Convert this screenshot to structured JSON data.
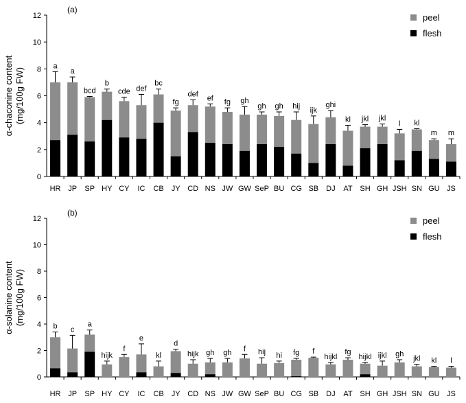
{
  "colors": {
    "peel": "#8c8c8c",
    "flesh": "#000000",
    "axis": "#000000"
  },
  "chart_data": [
    {
      "type": "bar",
      "stacked": true,
      "panel_label": "(a)",
      "ylabel_line1": "α-chaconine content",
      "ylabel_line2": "(mg/100g FW)",
      "ylim": [
        0,
        12
      ],
      "yticks": [
        "0",
        "2",
        "4",
        "6",
        "8",
        "10",
        "12"
      ],
      "categories": [
        "HR",
        "JP",
        "SP",
        "HY",
        "CY",
        "IC",
        "CB",
        "JY",
        "CD",
        "NS",
        "JW",
        "GW",
        "SeP",
        "BU",
        "CG",
        "SB",
        "DJ",
        "AT",
        "SH",
        "GH",
        "JSH",
        "SN",
        "GU",
        "JS"
      ],
      "series": [
        {
          "name": "flesh",
          "values": [
            2.7,
            3.1,
            2.6,
            4.2,
            2.9,
            2.8,
            4.0,
            1.5,
            3.3,
            2.5,
            2.4,
            1.9,
            2.4,
            2.2,
            1.7,
            1.0,
            2.4,
            0.8,
            2.1,
            2.4,
            1.2,
            1.9,
            1.3,
            1.1
          ]
        },
        {
          "name": "peel",
          "values": [
            4.3,
            3.9,
            3.3,
            2.1,
            2.7,
            2.5,
            2.1,
            3.4,
            2.0,
            2.7,
            2.4,
            2.7,
            2.2,
            2.3,
            2.5,
            2.9,
            2.0,
            2.6,
            1.6,
            1.3,
            2.0,
            1.6,
            1.4,
            1.3
          ]
        }
      ],
      "errors": [
        0.8,
        0.4,
        0.05,
        0.2,
        0.3,
        0.8,
        0.4,
        0.2,
        0.4,
        0.2,
        0.3,
        0.6,
        0.2,
        0.3,
        0.6,
        0.6,
        0.5,
        0.4,
        0.15,
        0.2,
        0.3,
        0.05,
        0.1,
        0.4
      ],
      "significance": [
        "a",
        "a",
        "bcd",
        "b",
        "cde",
        "def",
        "bc",
        "fg",
        "def",
        "ef",
        "fg",
        "gh",
        "gh",
        "gh",
        "hij",
        "ijk",
        "ghi",
        "kl",
        "jkl",
        "jkl",
        "l",
        "kl",
        "m",
        "m"
      ],
      "legend": {
        "position": "top-right",
        "entries": [
          "peel",
          "flesh"
        ]
      }
    },
    {
      "type": "bar",
      "stacked": true,
      "panel_label": "(b)",
      "ylabel_line1": "α-solanine content",
      "ylabel_line2": "(mg/100g FW)",
      "ylim": [
        0,
        12
      ],
      "yticks": [
        "0",
        "2",
        "4",
        "6",
        "8",
        "10",
        "12"
      ],
      "categories": [
        "HR",
        "JP",
        "SP",
        "HY",
        "CY",
        "IC",
        "CB",
        "JY",
        "CD",
        "NS",
        "JW",
        "GW",
        "SeP",
        "BU",
        "CG",
        "SB",
        "DJ",
        "AT",
        "SH",
        "GH",
        "JSH",
        "SN",
        "GU",
        "JS"
      ],
      "series": [
        {
          "name": "flesh",
          "values": [
            0.65,
            0.35,
            1.9,
            0,
            0,
            0.35,
            0,
            0.3,
            0,
            0.2,
            0,
            0,
            0,
            0,
            0.05,
            0,
            0,
            0,
            0.2,
            0,
            0,
            0,
            0,
            0
          ]
        },
        {
          "name": "peel",
          "values": [
            2.35,
            1.8,
            1.3,
            0.95,
            1.5,
            1.35,
            0.8,
            1.65,
            1.0,
            0.9,
            1.1,
            1.4,
            1.0,
            1.05,
            1.25,
            1.45,
            0.95,
            1.3,
            0.8,
            0.85,
            1.1,
            0.8,
            0.75,
            0.7
          ]
        }
      ],
      "errors": [
        0.4,
        1.0,
        0.35,
        0.25,
        0.2,
        0.8,
        0.4,
        0.15,
        0.3,
        0.3,
        0.3,
        0.3,
        0.45,
        0.15,
        0.1,
        0.05,
        0.15,
        0.15,
        0.1,
        0.35,
        0.2,
        0.15,
        0.05,
        0.1
      ],
      "significance": [
        "b",
        "c",
        "a",
        "hijk",
        "f",
        "e",
        "kl",
        "d",
        "hijk",
        "gh",
        "gh",
        "f",
        "hij",
        "hi",
        "fg",
        "f",
        "hijkl",
        "fg",
        "hijkl",
        "ijkl",
        "gh",
        "jkl",
        "kl",
        "l"
      ],
      "legend": {
        "position": "top-right",
        "entries": [
          "peel",
          "flesh"
        ]
      }
    }
  ]
}
